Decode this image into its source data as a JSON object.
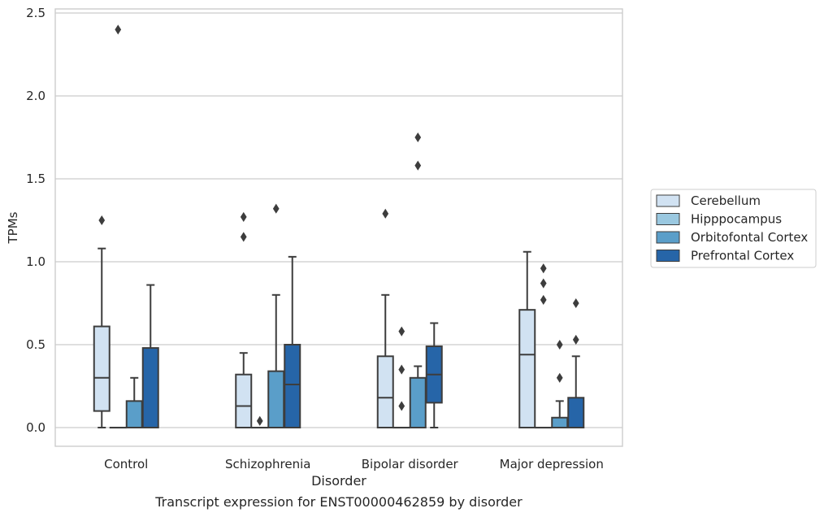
{
  "chart_data": {
    "type": "box",
    "xlabel": "Disorder",
    "ylabel": "TPMs",
    "caption": "Transcript expression for ENST00000462859 by disorder",
    "ylim": [
      -0.12,
      2.53
    ],
    "yticks": [
      0.0,
      0.5,
      1.0,
      1.5,
      2.0,
      2.5
    ],
    "ytick_labels": [
      "0.0",
      "0.5",
      "1.0",
      "1.5",
      "2.0",
      "2.5"
    ],
    "grid": "horizontal",
    "legend_position": "right",
    "categories": [
      "Control",
      "Schizophrenia",
      "Bipolar disorder",
      "Major depression"
    ],
    "series": [
      {
        "name": "Cerebellum",
        "color": "#d1e2f2",
        "boxes": [
          {
            "whisker_low": 0.0,
            "q1": 0.1,
            "median": 0.3,
            "q3": 0.61,
            "whisker_high": 1.08,
            "outliers": [
              1.25
            ]
          },
          {
            "whisker_low": 0.0,
            "q1": 0.0,
            "median": 0.13,
            "q3": 0.32,
            "whisker_high": 0.45,
            "outliers": [
              1.15,
              1.27
            ]
          },
          {
            "whisker_low": 0.0,
            "q1": 0.0,
            "median": 0.18,
            "q3": 0.43,
            "whisker_high": 0.8,
            "outliers": [
              1.29
            ]
          },
          {
            "whisker_low": 0.0,
            "q1": 0.0,
            "median": 0.44,
            "q3": 0.71,
            "whisker_high": 1.06,
            "outliers": []
          }
        ]
      },
      {
        "name": "Hipppocampus",
        "color": "#9ac8e0",
        "boxes": [
          {
            "whisker_low": 0.0,
            "q1": 0.0,
            "median": 0.0,
            "q3": 0.0,
            "whisker_high": 0.0,
            "outliers": [
              2.4
            ]
          },
          {
            "whisker_low": 0.0,
            "q1": 0.0,
            "median": 0.0,
            "q3": 0.0,
            "whisker_high": 0.0,
            "outliers": [
              0.04
            ]
          },
          {
            "whisker_low": 0.0,
            "q1": 0.0,
            "median": 0.0,
            "q3": 0.0,
            "whisker_high": 0.0,
            "outliers": [
              0.13,
              0.35,
              0.58
            ]
          },
          {
            "whisker_low": 0.0,
            "q1": 0.0,
            "median": 0.0,
            "q3": 0.0,
            "whisker_high": 0.0,
            "outliers": [
              0.77,
              0.87,
              0.96
            ]
          }
        ]
      },
      {
        "name": "Orbitofontal Cortex",
        "color": "#5a9ec9",
        "boxes": [
          {
            "whisker_low": 0.0,
            "q1": 0.0,
            "median": 0.0,
            "q3": 0.16,
            "whisker_high": 0.3,
            "outliers": []
          },
          {
            "whisker_low": 0.0,
            "q1": 0.0,
            "median": 0.0,
            "q3": 0.34,
            "whisker_high": 0.8,
            "outliers": [
              1.32
            ]
          },
          {
            "whisker_low": 0.0,
            "q1": 0.0,
            "median": 0.0,
            "q3": 0.3,
            "whisker_high": 0.37,
            "outliers": [
              1.58,
              1.75
            ]
          },
          {
            "whisker_low": 0.0,
            "q1": 0.0,
            "median": 0.0,
            "q3": 0.06,
            "whisker_high": 0.16,
            "outliers": [
              0.3,
              0.5
            ]
          }
        ]
      },
      {
        "name": "Prefrontal Cortex",
        "color": "#2665a8",
        "boxes": [
          {
            "whisker_low": 0.0,
            "q1": 0.0,
            "median": 0.0,
            "q3": 0.48,
            "whisker_high": 0.86,
            "outliers": []
          },
          {
            "whisker_low": 0.0,
            "q1": 0.0,
            "median": 0.26,
            "q3": 0.5,
            "whisker_high": 1.03,
            "outliers": []
          },
          {
            "whisker_low": 0.0,
            "q1": 0.15,
            "median": 0.32,
            "q3": 0.49,
            "whisker_high": 0.63,
            "outliers": []
          },
          {
            "whisker_low": 0.0,
            "q1": 0.0,
            "median": 0.0,
            "q3": 0.18,
            "whisker_high": 0.43,
            "outliers": [
              0.53,
              0.75
            ]
          }
        ]
      }
    ]
  }
}
